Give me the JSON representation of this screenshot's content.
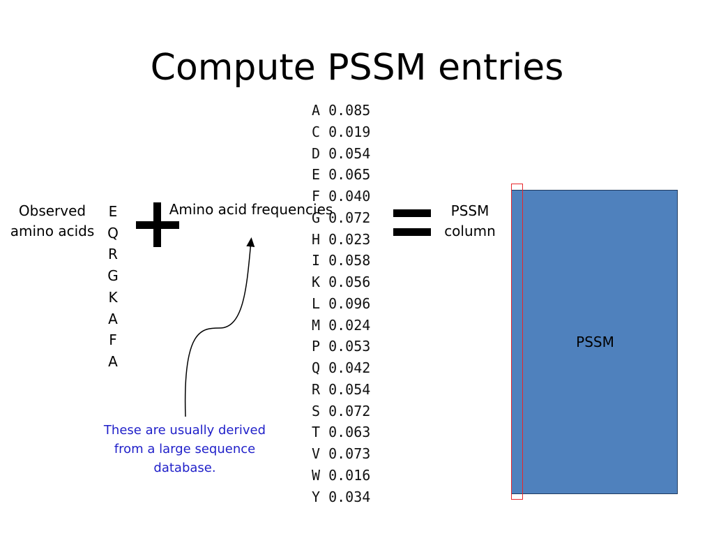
{
  "title": "Compute PSSM entries",
  "observed": {
    "label": "Observed amino acids",
    "sequence": [
      "E",
      "Q",
      "R",
      "G",
      "K",
      "A",
      "F",
      "A"
    ]
  },
  "operators": {
    "plus": "+",
    "equals": "="
  },
  "frequencies": {
    "label": "Amino acid frequencies",
    "rows": [
      {
        "aa": "A",
        "freq": "0.085"
      },
      {
        "aa": "C",
        "freq": "0.019"
      },
      {
        "aa": "D",
        "freq": "0.054"
      },
      {
        "aa": "E",
        "freq": "0.065"
      },
      {
        "aa": "F",
        "freq": "0.040"
      },
      {
        "aa": "G",
        "freq": "0.072"
      },
      {
        "aa": "H",
        "freq": "0.023"
      },
      {
        "aa": "I",
        "freq": "0.058"
      },
      {
        "aa": "K",
        "freq": "0.056"
      },
      {
        "aa": "L",
        "freq": "0.096"
      },
      {
        "aa": "M",
        "freq": "0.024"
      },
      {
        "aa": "P",
        "freq": "0.053"
      },
      {
        "aa": "Q",
        "freq": "0.042"
      },
      {
        "aa": "R",
        "freq": "0.054"
      },
      {
        "aa": "S",
        "freq": "0.072"
      },
      {
        "aa": "T",
        "freq": "0.063"
      },
      {
        "aa": "V",
        "freq": "0.073"
      },
      {
        "aa": "W",
        "freq": "0.016"
      },
      {
        "aa": "Y",
        "freq": "0.034"
      }
    ]
  },
  "note": "These are usually derived from a large sequence database.",
  "pssm_column_label": "PSSM column",
  "pssm_label": "PSSM",
  "colors": {
    "pssm_fill": "#4f81bd",
    "highlight": "#e8262a",
    "note_text": "#1f1fc9"
  }
}
